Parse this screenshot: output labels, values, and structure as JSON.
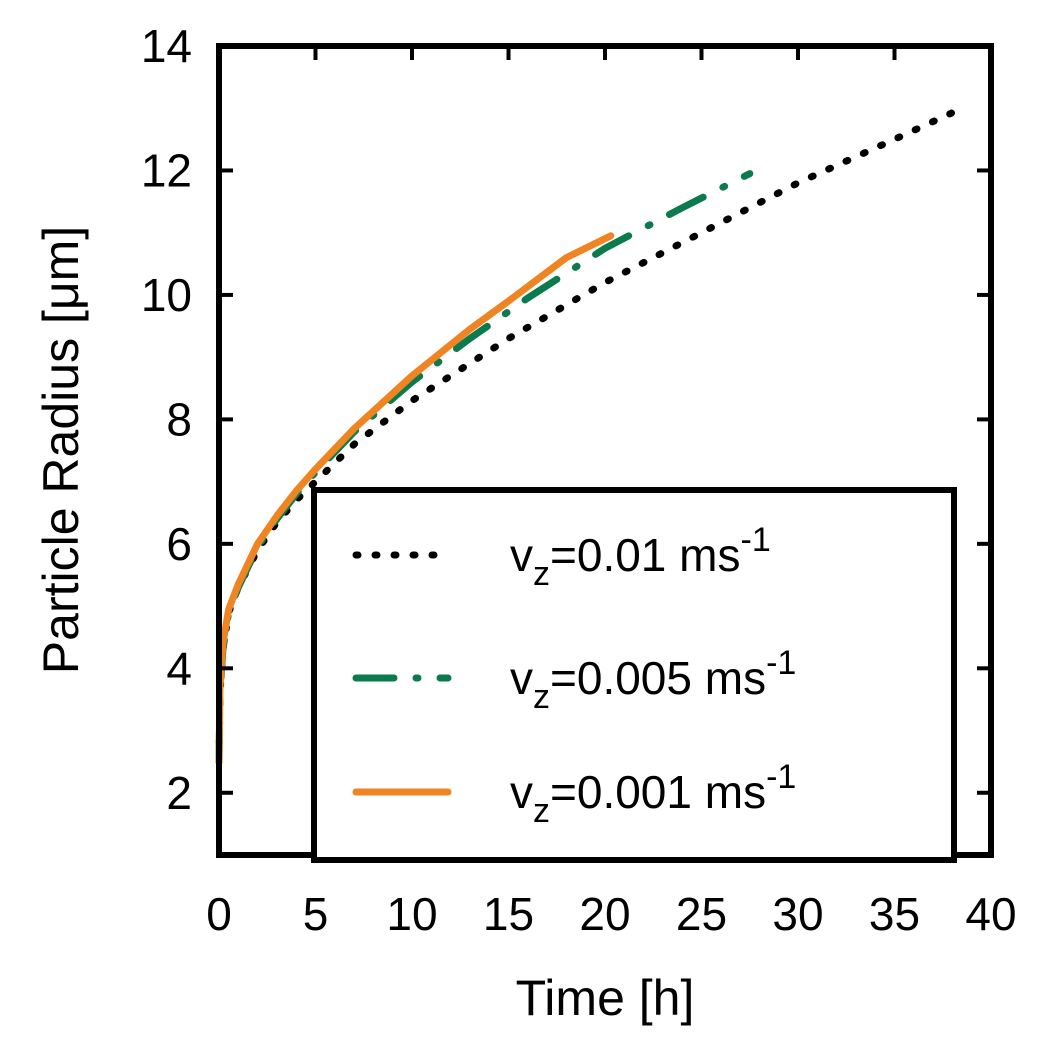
{
  "chart_data": {
    "type": "line",
    "title": "",
    "xlabel": "Time [h]",
    "ylabel": "Particle Radius [μm]",
    "xlim": [
      0,
      40
    ],
    "ylim": [
      1,
      14
    ],
    "xticks": [
      0,
      5,
      10,
      15,
      20,
      25,
      30,
      35,
      40
    ],
    "yticks": [
      2,
      4,
      6,
      8,
      10,
      12,
      14
    ],
    "grid": false,
    "legend_position": "bottom-right",
    "series": [
      {
        "name": "vz=0.01 ms-1",
        "label_main": "v",
        "label_sub": "z",
        "label_rest": "=0.01 ms",
        "label_sup": "-1",
        "color": "#000000",
        "style": "dotted",
        "x": [
          0,
          0.05,
          0.2,
          0.5,
          1,
          2,
          3,
          4,
          5,
          7,
          10,
          15,
          20,
          25,
          30,
          35,
          38.5
        ],
        "y": [
          2.5,
          3.6,
          4.3,
          4.9,
          5.3,
          5.9,
          6.35,
          6.7,
          7.0,
          7.6,
          8.3,
          9.3,
          10.2,
          11.0,
          11.8,
          12.5,
          13.0
        ]
      },
      {
        "name": "vz=0.005 ms-1",
        "label_main": "v",
        "label_sub": "z",
        "label_rest": "=0.005 ms",
        "label_sup": "-1",
        "color": "#0b7a4c",
        "style": "dashed",
        "x": [
          0,
          0.05,
          0.2,
          0.5,
          1,
          2,
          3,
          4,
          5,
          7,
          10,
          13,
          16,
          20,
          24,
          27.5
        ],
        "y": [
          2.5,
          3.6,
          4.3,
          4.9,
          5.3,
          5.95,
          6.4,
          6.8,
          7.15,
          7.8,
          8.6,
          9.3,
          9.95,
          10.75,
          11.4,
          11.95
        ]
      },
      {
        "name": "vz=0.001 ms-1",
        "label_main": "v",
        "label_sub": "z",
        "label_rest": "=0.001 ms",
        "label_sup": "-1",
        "color": "#ef8423",
        "style": "solid",
        "x": [
          0,
          0.05,
          0.2,
          0.5,
          1,
          2,
          3,
          4,
          5,
          7,
          10,
          13,
          15,
          18,
          20.3
        ],
        "y": [
          2.5,
          3.7,
          4.4,
          4.95,
          5.35,
          6.0,
          6.45,
          6.85,
          7.2,
          7.85,
          8.7,
          9.45,
          9.9,
          10.6,
          10.95
        ]
      }
    ]
  }
}
